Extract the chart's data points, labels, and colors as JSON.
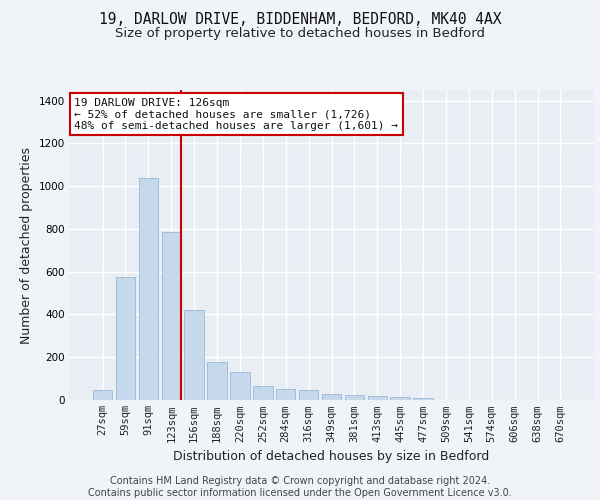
{
  "title_line1": "19, DARLOW DRIVE, BIDDENHAM, BEDFORD, MK40 4AX",
  "title_line2": "Size of property relative to detached houses in Bedford",
  "xlabel": "Distribution of detached houses by size in Bedford",
  "ylabel": "Number of detached properties",
  "footer_line1": "Contains HM Land Registry data © Crown copyright and database right 2024.",
  "footer_line2": "Contains public sector information licensed under the Open Government Licence v3.0.",
  "categories": [
    "27sqm",
    "59sqm",
    "91sqm",
    "123sqm",
    "156sqm",
    "188sqm",
    "220sqm",
    "252sqm",
    "284sqm",
    "316sqm",
    "349sqm",
    "381sqm",
    "413sqm",
    "445sqm",
    "477sqm",
    "509sqm",
    "541sqm",
    "574sqm",
    "606sqm",
    "638sqm",
    "670sqm"
  ],
  "values": [
    45,
    575,
    1040,
    785,
    420,
    180,
    130,
    65,
    50,
    45,
    30,
    25,
    20,
    15,
    10,
    0,
    0,
    0,
    0,
    0,
    0
  ],
  "bar_color": "#c5d8ec",
  "bar_edge_color": "#9ab8d4",
  "red_line_index": 3,
  "red_line_color": "#cc0000",
  "annotation_line1": "19 DARLOW DRIVE: 126sqm",
  "annotation_line2": "← 52% of detached houses are smaller (1,726)",
  "annotation_line3": "48% of semi-detached houses are larger (1,601) →",
  "annotation_box_facecolor": "#ffffff",
  "annotation_box_edgecolor": "#cc0000",
  "ylim": [
    0,
    1450
  ],
  "yticks": [
    0,
    200,
    400,
    600,
    800,
    1000,
    1200,
    1400
  ],
  "fig_background": "#f0f4f8",
  "plot_background": "#e8eef4",
  "grid_color": "#ffffff",
  "title_fontsize": 10.5,
  "subtitle_fontsize": 9.5,
  "axis_label_fontsize": 9,
  "tick_fontsize": 7.5,
  "annotation_fontsize": 8,
  "footer_fontsize": 7
}
